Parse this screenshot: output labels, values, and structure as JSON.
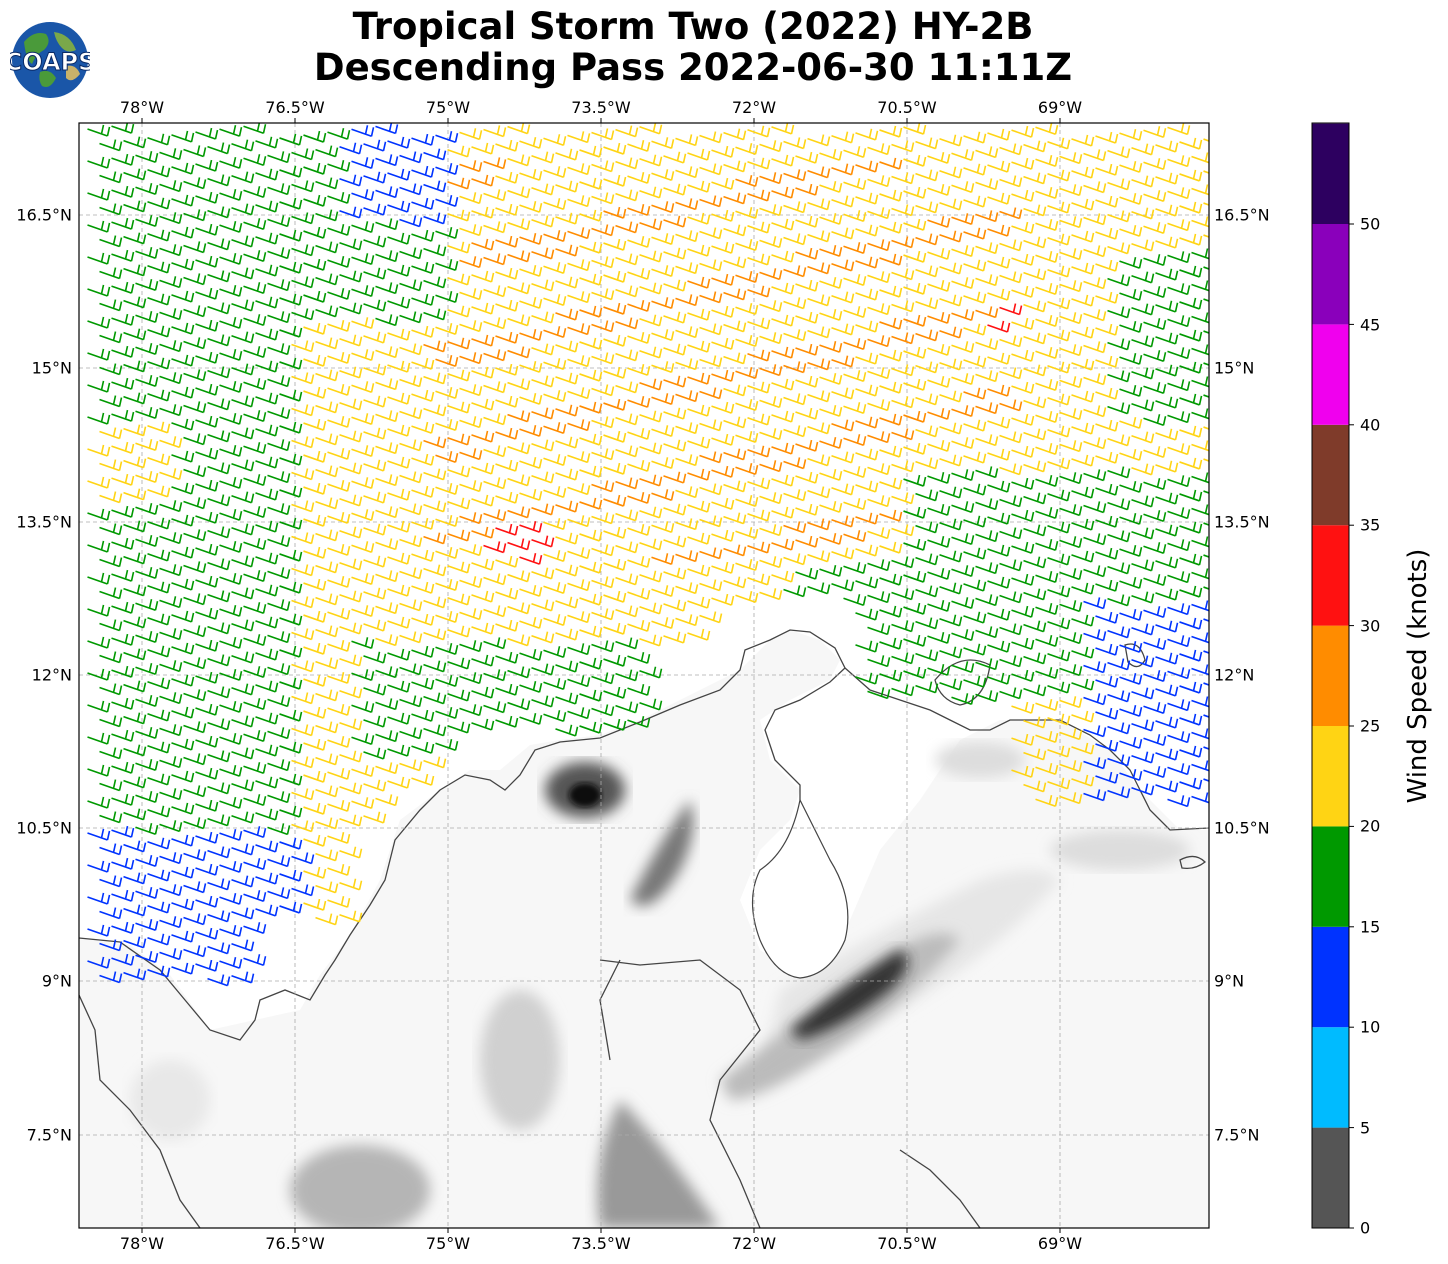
{
  "title": {
    "line1": "Tropical Storm Two (2022) HY-2B",
    "line2": "Descending Pass 2022-06-30 11:11Z"
  },
  "logo": {
    "text": "COAPS",
    "icon": "globe-icon"
  },
  "map": {
    "lon_labels": [
      "78°W",
      "76.5°W",
      "75°W",
      "73.5°W",
      "72°W",
      "70.5°W",
      "69°W"
    ],
    "lat_labels": [
      "16.5°N",
      "15°N",
      "13.5°N",
      "12°N",
      "10.5°N",
      "9°N",
      "7.5°N"
    ]
  },
  "colorbar": {
    "label": "Wind Speed (knots)",
    "ticks": [
      "0",
      "5",
      "10",
      "15",
      "20",
      "25",
      "30",
      "35",
      "40",
      "45",
      "50"
    ],
    "colors": [
      "#555555",
      "#00bbff",
      "#0033ff",
      "#009900",
      "#ffd414",
      "#ff8c00",
      "#ff1111",
      "#7f3b2a",
      "#f000ee",
      "#8a00bb",
      "#2d0060"
    ]
  }
}
